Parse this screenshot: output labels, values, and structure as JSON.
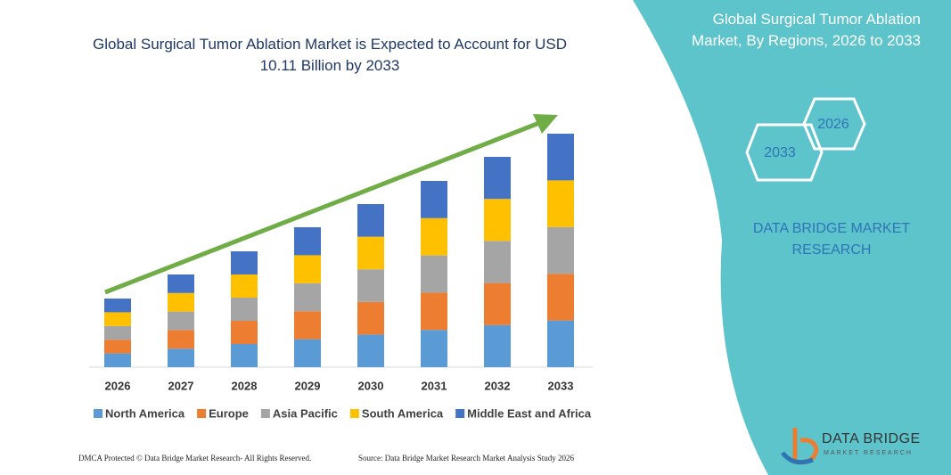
{
  "chart_data": {
    "type": "bar",
    "stacked": true,
    "title": "Global Surgical Tumor Ablation Market is Expected to Account for USD 10.11 Billion by 2033",
    "categories": [
      "2026",
      "2027",
      "2028",
      "2029",
      "2030",
      "2031",
      "2032",
      "2033"
    ],
    "series": [
      {
        "name": "North America",
        "color": "#5b9bd5",
        "values": [
          15.4,
          20.8,
          26,
          31.4,
          36.6,
          41.8,
          47.2,
          52.4
        ]
      },
      {
        "name": "Europe",
        "color": "#ed7d31",
        "values": [
          15.4,
          20.8,
          26,
          31.4,
          36.6,
          41.8,
          47.2,
          52.4
        ]
      },
      {
        "name": "Asia Pacific",
        "color": "#a5a5a5",
        "values": [
          15.4,
          20.8,
          26,
          31.4,
          36.6,
          41.8,
          47.2,
          52.4
        ]
      },
      {
        "name": "South America",
        "color": "#ffc000",
        "values": [
          15.4,
          20.8,
          26,
          31.4,
          36.6,
          41.8,
          47.2,
          52.4
        ]
      },
      {
        "name": "Middle East and Africa",
        "color": "#4472c4",
        "values": [
          15.4,
          20.8,
          26,
          31.4,
          36.6,
          41.8,
          47.2,
          52.4
        ]
      }
    ],
    "ylim": [
      0,
      300
    ]
  },
  "panel": {
    "title": "Global Surgical Tumor Ablation Market, By Regions, 2026 to 2033",
    "hex_labels": [
      "2026",
      "2033"
    ],
    "brand": "DATA BRIDGE MARKET RESEARCH"
  },
  "logo": {
    "name": "DATA BRIDGE",
    "tagline": "MARKET RESEARCH"
  },
  "footer": {
    "left": "DMCA Protected © Data Bridge Market Research- All Rights Reserved.",
    "right": "Source: Data Bridge Market Research Market Analysis Study 2026"
  }
}
